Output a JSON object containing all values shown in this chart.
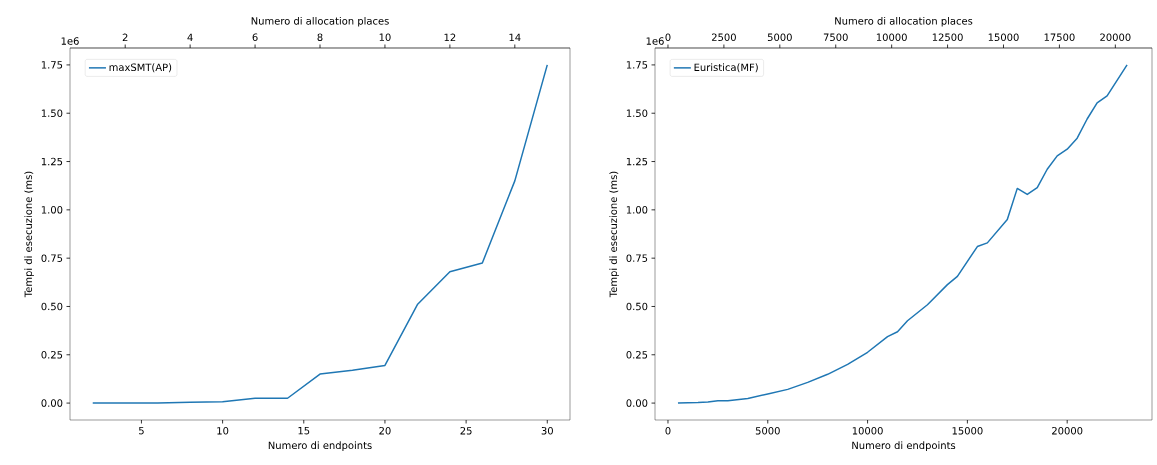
{
  "chart_data": [
    {
      "type": "line",
      "xlabel": "Numero di endpoints",
      "x2label": "Numero di allocation places",
      "ylabel": "Tempi di esecuzione (ms)",
      "annotations": [
        "1e6"
      ],
      "legend": "top left",
      "xlim": [
        0.6,
        31.4
      ],
      "xticks": [
        5,
        10,
        15,
        20,
        25,
        30
      ],
      "x2lim": [
        0.3,
        15.7
      ],
      "x2ticks": [
        2,
        4,
        6,
        8,
        10,
        12,
        14
      ],
      "ylim": [
        -0.0875,
        1.8375
      ],
      "yticks": [
        {
          "value": 0,
          "label": "0.00"
        },
        {
          "value": 0.25,
          "label": "0.25"
        },
        {
          "value": 0.5,
          "label": "0.50"
        },
        {
          "value": 0.75,
          "label": "0.75"
        },
        {
          "value": 1,
          "label": "1.00"
        },
        {
          "value": 1.25,
          "label": "1.25"
        },
        {
          "value": 1.5,
          "label": "1.50"
        },
        {
          "value": 1.75,
          "label": "1.75"
        }
      ],
      "x": [
        2,
        4,
        6,
        8,
        10,
        12,
        14,
        16,
        18,
        20,
        22,
        24,
        26,
        28,
        30
      ],
      "series": [
        {
          "name": "maxSMT(AP)",
          "color": "#1f77b4",
          "values": [
            0,
            0,
            0,
            0.004,
            0.007,
            0.025,
            0.025,
            0.15,
            0.17,
            0.195,
            0.51,
            0.68,
            0.725,
            1.15,
            1.75
          ]
        }
      ]
    },
    {
      "type": "line",
      "xlabel": "Numero di endpoints",
      "x2label": "Numero di allocation places",
      "ylabel": "Tempi di esecuzione (ms)",
      "annotations": [
        "1e6"
      ],
      "legend": "top left",
      "xlim": [
        -650,
        24250
      ],
      "xticks": [
        0,
        5000,
        10000,
        15000,
        20000
      ],
      "x2lim": [
        -580,
        21640
      ],
      "x2ticks": [
        0,
        2500,
        5000,
        7500,
        10000,
        12500,
        15000,
        17500,
        20000
      ],
      "ylim": [
        -0.0875,
        1.8375
      ],
      "yticks": [
        {
          "value": 0,
          "label": "0.00"
        },
        {
          "value": 0.25,
          "label": "0.25"
        },
        {
          "value": 0.5,
          "label": "0.50"
        },
        {
          "value": 0.75,
          "label": "0.75"
        },
        {
          "value": 1,
          "label": "1.00"
        },
        {
          "value": 1.25,
          "label": "1.25"
        },
        {
          "value": 1.5,
          "label": "1.50"
        },
        {
          "value": 1.75,
          "label": "1.75"
        }
      ],
      "x": [
        500,
        1500,
        2000,
        2500,
        3000,
        4000,
        5000,
        6000,
        7000,
        8000,
        9000,
        10000,
        11000,
        11500,
        12000,
        13000,
        14000,
        14500,
        15500,
        16000,
        17000,
        17500,
        18000,
        18500,
        19000,
        19500,
        20000,
        20500,
        21000,
        21500,
        22000,
        23000
      ],
      "series": [
        {
          "name": "Euristica(MF)",
          "color": "#1f77b4",
          "values": [
            0,
            0.003,
            0.006,
            0.012,
            0.012,
            0.024,
            0.047,
            0.071,
            0.107,
            0.149,
            0.2,
            0.263,
            0.344,
            0.369,
            0.426,
            0.509,
            0.613,
            0.656,
            0.81,
            0.829,
            0.95,
            1.111,
            1.08,
            1.115,
            1.21,
            1.279,
            1.314,
            1.371,
            1.47,
            1.553,
            1.59,
            1.75
          ]
        }
      ]
    }
  ]
}
